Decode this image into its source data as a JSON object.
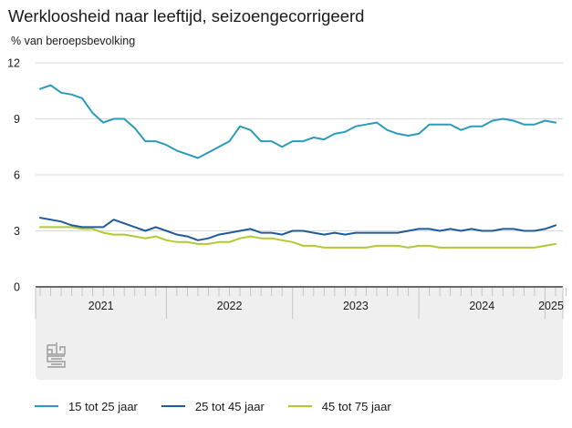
{
  "header": {
    "title": "Werkloosheid naar leeftijd, seizoengecorrigeerd",
    "unit_label": "% van beroepsbevolking"
  },
  "logo": {
    "text": "cbs",
    "icon": "cbs-logo-icon"
  },
  "chart_data": {
    "type": "line",
    "title": "Werkloosheid naar leeftijd, seizoengecorrigeerd",
    "xlabel": "",
    "ylabel": "% van beroepsbevolking",
    "ylim": [
      0,
      12
    ],
    "yticks": [
      0,
      3,
      6,
      9,
      12
    ],
    "ytick_labels": [
      "0",
      "3",
      "6",
      "9",
      "12"
    ],
    "grid": true,
    "x_start": "2021-01",
    "x_frequency": "monthly",
    "year_labels": [
      "2021",
      "2022",
      "2023",
      "2024",
      "2025"
    ],
    "legend_position": "bottom",
    "series": [
      {
        "name": "15 tot 25 jaar",
        "color": "#2a9bbd",
        "values": [
          10.6,
          10.8,
          10.4,
          10.3,
          10.1,
          9.3,
          8.8,
          9.0,
          9.0,
          8.5,
          7.8,
          7.8,
          7.6,
          7.3,
          7.1,
          6.9,
          7.2,
          7.5,
          7.8,
          8.6,
          8.4,
          7.8,
          7.8,
          7.5,
          7.8,
          7.8,
          8.0,
          7.9,
          8.2,
          8.3,
          8.6,
          8.7,
          8.8,
          8.4,
          8.2,
          8.1,
          8.2,
          8.7,
          8.7,
          8.7,
          8.4,
          8.6,
          8.6,
          8.9,
          9.0,
          8.9,
          8.7,
          8.7,
          8.9,
          8.8
        ]
      },
      {
        "name": "25 tot 45 jaar",
        "color": "#1f5b99",
        "values": [
          3.7,
          3.6,
          3.5,
          3.3,
          3.2,
          3.2,
          3.2,
          3.6,
          3.4,
          3.2,
          3.0,
          3.2,
          3.0,
          2.8,
          2.7,
          2.5,
          2.6,
          2.8,
          2.9,
          3.0,
          3.1,
          2.9,
          2.9,
          2.8,
          3.0,
          3.0,
          2.9,
          2.8,
          2.9,
          2.8,
          2.9,
          2.9,
          2.9,
          2.9,
          2.9,
          3.0,
          3.1,
          3.1,
          3.0,
          3.1,
          3.0,
          3.1,
          3.0,
          3.0,
          3.1,
          3.1,
          3.0,
          3.0,
          3.1,
          3.3
        ]
      },
      {
        "name": "45 tot 75 jaar",
        "color": "#afcb2f",
        "values": [
          3.2,
          3.2,
          3.2,
          3.2,
          3.1,
          3.1,
          2.9,
          2.8,
          2.8,
          2.7,
          2.6,
          2.7,
          2.5,
          2.4,
          2.4,
          2.3,
          2.3,
          2.4,
          2.4,
          2.6,
          2.7,
          2.6,
          2.6,
          2.5,
          2.4,
          2.2,
          2.2,
          2.1,
          2.1,
          2.1,
          2.1,
          2.1,
          2.2,
          2.2,
          2.2,
          2.1,
          2.2,
          2.2,
          2.1,
          2.1,
          2.1,
          2.1,
          2.1,
          2.1,
          2.1,
          2.1,
          2.1,
          2.1,
          2.2,
          2.3
        ]
      }
    ]
  }
}
